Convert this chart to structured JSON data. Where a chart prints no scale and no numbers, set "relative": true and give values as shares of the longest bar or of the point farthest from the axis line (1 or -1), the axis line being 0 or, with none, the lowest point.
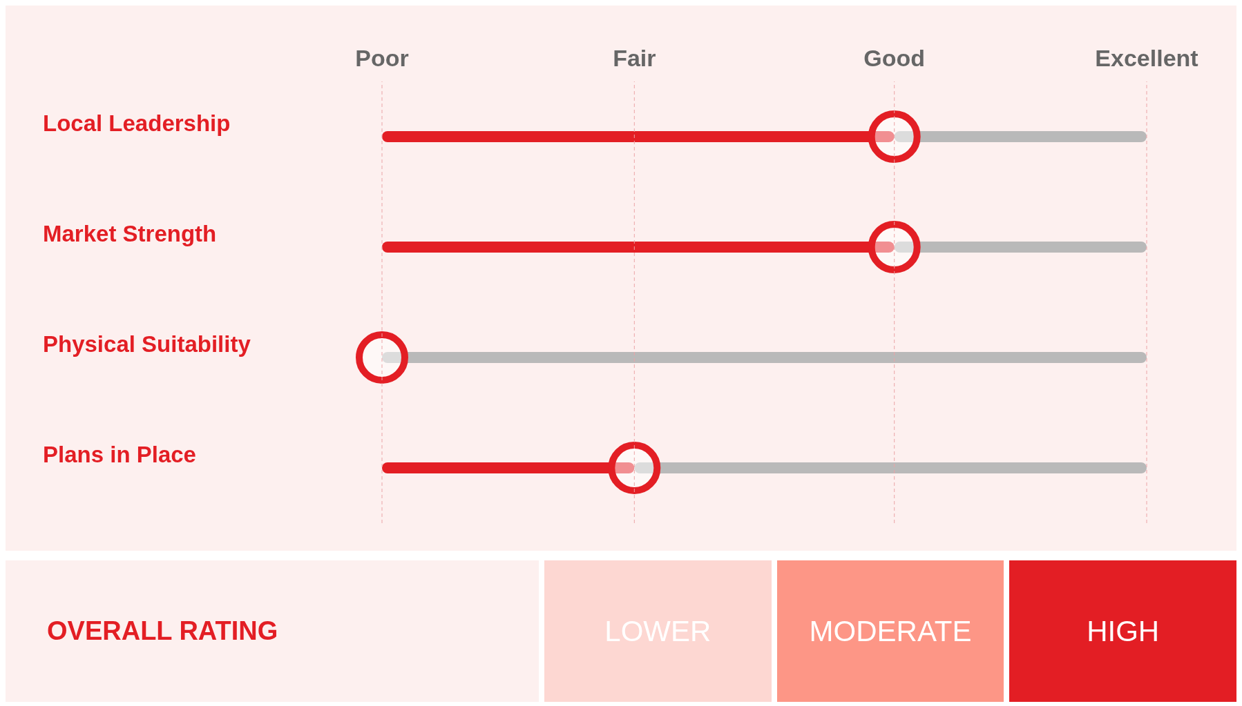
{
  "chart_data": {
    "type": "bar",
    "orientation": "horizontal",
    "relative": true,
    "stacked": true,
    "categories": [
      "Local Leadership",
      "Market Strength",
      "Physical Suitability",
      "Plans in Place"
    ],
    "series": [
      {
        "color": "#e31e24",
        "values": [
          0.67,
          0.67,
          0,
          0.33
        ]
      },
      {
        "color": "#b9b9b9",
        "values": [
          0.33,
          0.33,
          1,
          0.67
        ]
      }
    ],
    "ref_lines": [
      {
        "axis": "x",
        "value": 0,
        "label": "Poor",
        "color": "#eba3a6",
        "line_style": "dashed"
      },
      {
        "axis": "x",
        "value": 0.33,
        "label": "Fair",
        "color": "#eba3a6",
        "line_style": "dashed"
      },
      {
        "axis": "x",
        "value": 0.67,
        "label": "Good",
        "color": "#eba3a6",
        "line_style": "dashed"
      },
      {
        "axis": "x",
        "value": 1,
        "label": "Excellent",
        "color": "#eba3a6",
        "line_style": "dashed"
      }
    ],
    "annotations": [
      "OVERALL RATING",
      "LOWER",
      "MODERATE",
      "HIGH"
    ]
  }
}
